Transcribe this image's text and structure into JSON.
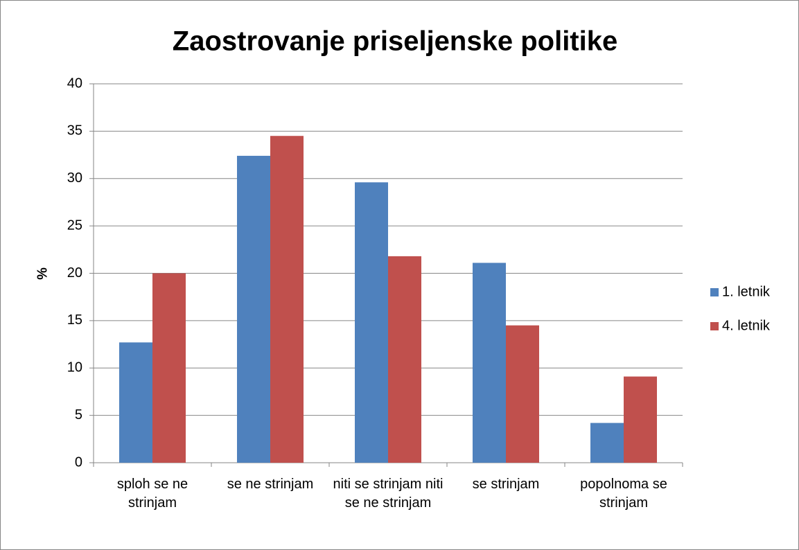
{
  "chart_data": {
    "type": "bar",
    "title": "Zaostrovanje priseljenske politike",
    "y_label": "%",
    "categories": [
      "sploh se ne strinjam",
      "se ne strinjam",
      "niti se strinjam niti se ne strinjam",
      "se strinjam",
      "popolnoma se strinjam"
    ],
    "series": [
      {
        "name": "1. letnik",
        "color": "#4f81bd",
        "values": [
          12.7,
          32.4,
          29.6,
          21.1,
          4.2
        ]
      },
      {
        "name": "4. letnik",
        "color": "#c0504d",
        "values": [
          20,
          34.5,
          21.8,
          14.5,
          9.1
        ]
      }
    ],
    "ylim": [
      0,
      40
    ],
    "yticks": [
      0,
      5,
      10,
      15,
      20,
      25,
      30,
      35,
      40
    ],
    "grid": true,
    "legend": "right"
  }
}
